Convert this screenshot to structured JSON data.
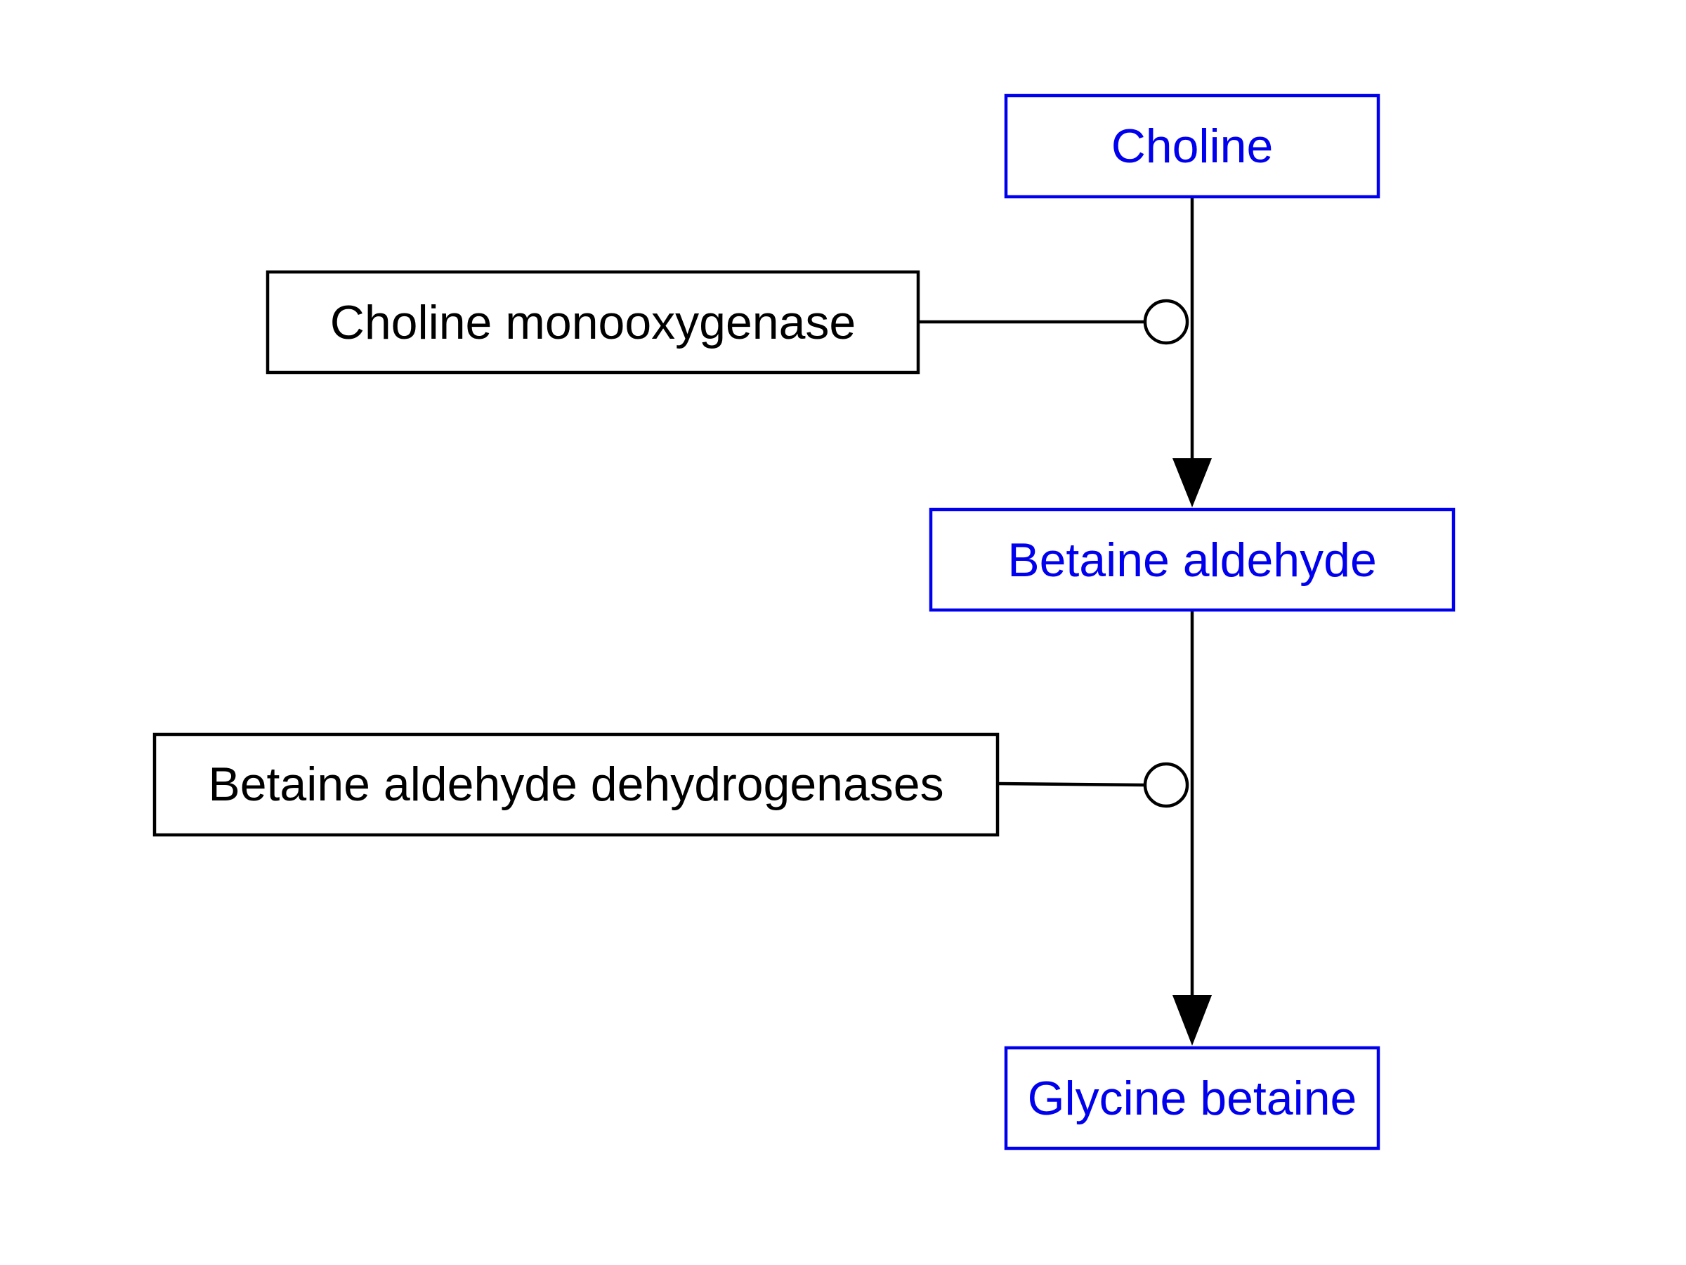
{
  "colors": {
    "metabolite": "#0000ee",
    "enzyme": "#000000",
    "background": "#ffffff"
  },
  "metabolites": {
    "choline": "Choline",
    "betaine_aldehyde": "Betaine aldehyde",
    "glycine_betaine": "Glycine betaine"
  },
  "enzymes": {
    "choline_monooxygenase": "Choline monooxygenase",
    "betaine_aldehyde_dehydrogenases": "Betaine aldehyde dehydrogenases"
  }
}
